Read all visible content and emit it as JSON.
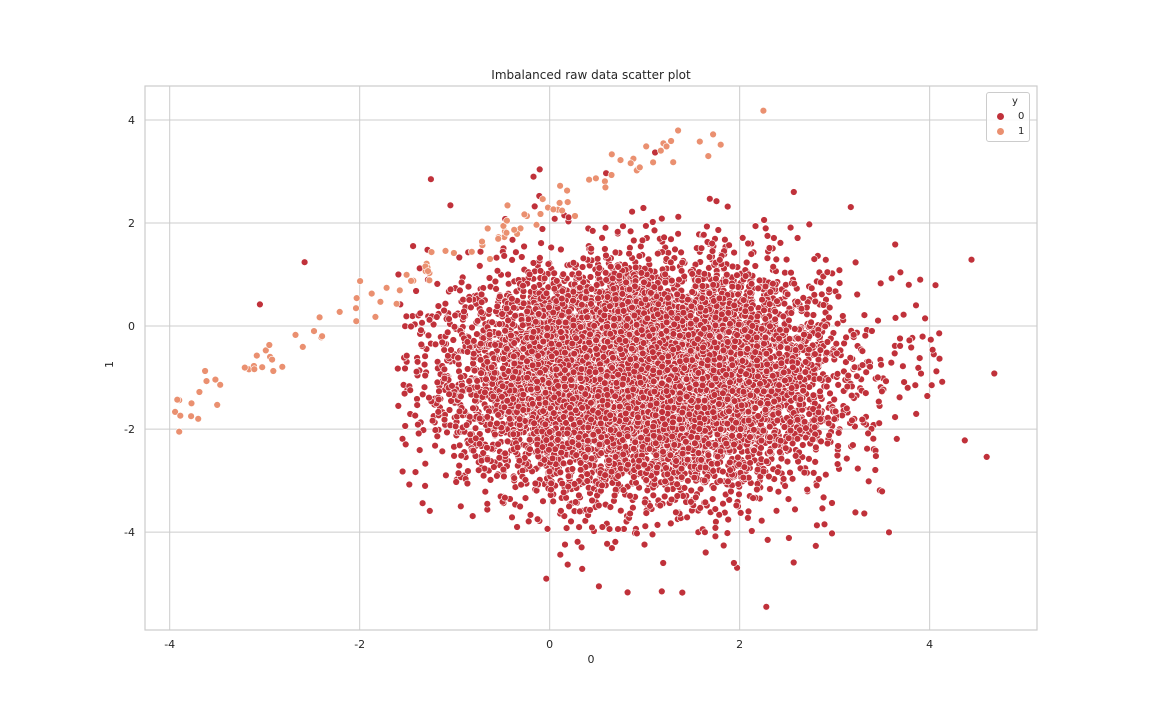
{
  "figure": {
    "title": "Imbalanced raw data scatter plot",
    "xlabel": "0",
    "ylabel": "1",
    "background": "#ffffff",
    "axes_border_color": "#cccccc",
    "grid_color": "#cccccc",
    "tick_color": "#262626"
  },
  "legend": {
    "title": "y",
    "entries": [
      {
        "label": "0",
        "color": "#c0313a"
      },
      {
        "label": "1",
        "color": "#ea9070"
      }
    ]
  },
  "chart_data": {
    "type": "scatter",
    "title": "Imbalanced raw data scatter plot",
    "xlabel": "0",
    "ylabel": "1",
    "xlim": [
      -4.26,
      5.13
    ],
    "ylim": [
      -5.9,
      4.66
    ],
    "xticks": [
      -4,
      -2,
      0,
      2,
      4
    ],
    "yticks": [
      -4,
      -2,
      0,
      2,
      4
    ],
    "xtick_labels": [
      "-4",
      "-2",
      "0",
      "2",
      "4"
    ],
    "ytick_labels": [
      "-4",
      "-2",
      "0",
      "2",
      "4"
    ],
    "grid": true,
    "legend_position": "upper right",
    "legend_title": "y",
    "series": [
      {
        "name": "0",
        "color": "#c0313a",
        "approx_count": 9900,
        "distribution": {
          "center_x": 1.0,
          "center_y": -1.0,
          "std_x": 0.95,
          "std_y": 1.05,
          "x_range": [
            -1.6,
            4.7
          ],
          "y_range": [
            -5.4,
            3.4
          ]
        },
        "notable_points": [
          {
            "x": -3.05,
            "y": 0.42
          },
          {
            "x": -2.58,
            "y": 1.24
          },
          {
            "x": -1.25,
            "y": 2.85
          },
          {
            "x": 0.82,
            "y": -5.17
          },
          {
            "x": 1.18,
            "y": -5.15
          },
          {
            "x": 2.28,
            "y": -5.45
          },
          {
            "x": 0.19,
            "y": -4.63
          },
          {
            "x": 4.37,
            "y": -2.22
          },
          {
            "x": 4.6,
            "y": -2.54
          },
          {
            "x": 4.68,
            "y": -0.92
          },
          {
            "x": 4.1,
            "y": -0.14
          },
          {
            "x": 3.17,
            "y": 2.31
          },
          {
            "x": 1.11,
            "y": 3.37
          },
          {
            "x": -0.17,
            "y": 2.9
          },
          {
            "x": 3.9,
            "y": 0.9
          },
          {
            "x": 3.78,
            "y": 0.8
          }
        ]
      },
      {
        "name": "1",
        "color": "#ea9070",
        "approx_count": 100,
        "distribution": {
          "trend": "linear",
          "slope": 0.98,
          "intercept": 2.3,
          "x_range": [
            -3.95,
            1.4
          ],
          "noise": 0.18
        },
        "notable_points": [
          {
            "x": -3.92,
            "y": -1.43
          },
          {
            "x": -3.9,
            "y": -2.05
          },
          {
            "x": -3.77,
            "y": -1.5
          },
          {
            "x": -3.7,
            "y": -1.8
          },
          {
            "x": -3.5,
            "y": -1.53
          },
          {
            "x": 1.58,
            "y": 3.58
          },
          {
            "x": 1.72,
            "y": 3.72
          },
          {
            "x": 1.8,
            "y": 3.52
          },
          {
            "x": 2.25,
            "y": 4.18
          },
          {
            "x": 1.67,
            "y": 3.3
          },
          {
            "x": 1.3,
            "y": 3.18
          }
        ]
      }
    ]
  }
}
